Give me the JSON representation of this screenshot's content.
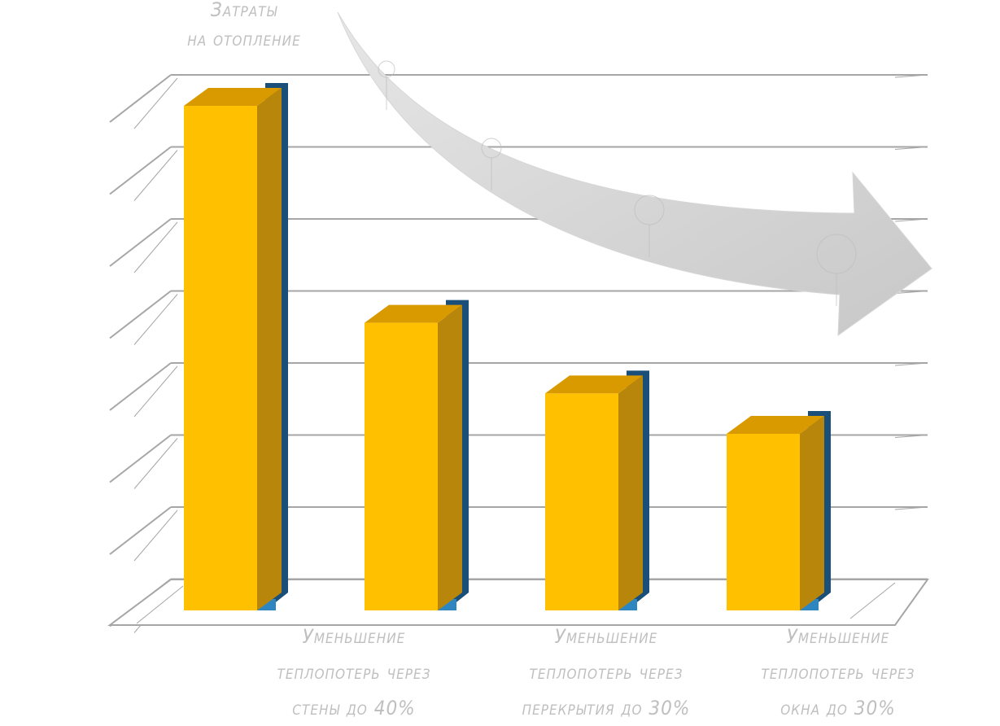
{
  "chart_data": {
    "type": "bar",
    "title": "",
    "ylabel_lines": [
      "Затраты",
      "на отопление"
    ],
    "categories": [
      "",
      [
        "Уменьшение",
        "теплопотерь через",
        "стены до 40%"
      ],
      [
        "Уменьшение",
        "теплопотерь через",
        "перекрытия до 30%"
      ],
      [
        "Уменьшение",
        "теплопотерь через",
        "окна до 30%"
      ]
    ],
    "series": [
      {
        "values": [
          100,
          57,
          43,
          35
        ],
        "color": "#FFC000"
      },
      {
        "values": [
          100,
          57,
          43,
          35
        ],
        "color": "#1F6FA8"
      }
    ],
    "ylim": [
      0,
      100
    ],
    "grid": true,
    "three_d": true,
    "trend_arrow": "downward",
    "colors": {
      "front": "#FFC000",
      "front_side": "#B8860B",
      "front_top": "#D99A00",
      "back": "#2E86C1",
      "back_side": "#1A4F7A",
      "grid": "#a6a6a6",
      "arrow": "#d0d0d0",
      "label": "#bfbfbf"
    }
  }
}
